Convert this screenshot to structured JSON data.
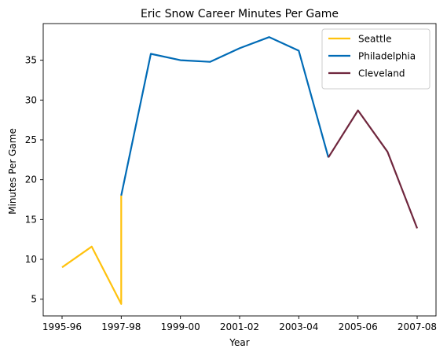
{
  "chart_data": {
    "type": "line",
    "title": "Eric Snow Career Minutes Per Game",
    "xlabel": "Year",
    "ylabel": "Minutes Per Game",
    "x_ticks": [
      "1995-96",
      "1997-98",
      "1999-00",
      "2001-02",
      "2003-04",
      "2005-06",
      "2007-08"
    ],
    "y_ticks": [
      5,
      10,
      15,
      20,
      25,
      30,
      35
    ],
    "ylim": [
      2.9,
      39.6
    ],
    "grid": false,
    "legend_position": "top-right",
    "series": [
      {
        "name": "Seattle",
        "color": "#FFC20E",
        "points": [
          {
            "x": "1995-96",
            "y": 9.0
          },
          {
            "x": "1996-97",
            "y": 11.6
          },
          {
            "x": "1997-98",
            "y": 4.4
          },
          {
            "x": "1997-98",
            "y": 18.0
          }
        ]
      },
      {
        "name": "Philadelphia",
        "color": "#006BB6",
        "points": [
          {
            "x": "1997-98",
            "y": 18.0
          },
          {
            "x": "1998-99",
            "y": 35.8
          },
          {
            "x": "1999-00",
            "y": 35.0
          },
          {
            "x": "2000-01",
            "y": 34.8
          },
          {
            "x": "2001-02",
            "y": 36.5
          },
          {
            "x": "2002-03",
            "y": 37.9
          },
          {
            "x": "2003-04",
            "y": 36.2
          },
          {
            "x": "2004-05",
            "y": 22.8
          }
        ]
      },
      {
        "name": "Cleveland",
        "color": "#6F263D",
        "points": [
          {
            "x": "2004-05",
            "y": 22.8
          },
          {
            "x": "2005-06",
            "y": 28.7
          },
          {
            "x": "2006-07",
            "y": 23.5
          },
          {
            "x": "2007-08",
            "y": 13.9
          }
        ]
      }
    ]
  }
}
